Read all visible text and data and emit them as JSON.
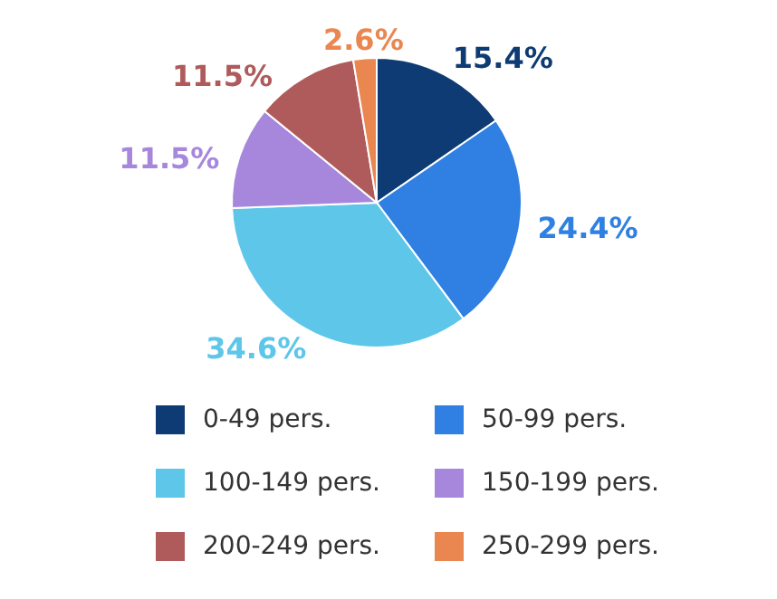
{
  "chart_data": {
    "type": "pie",
    "categories": [
      "0-49 pers.",
      "50-99 pers.",
      "100-149 pers.",
      "150-199 pers.",
      "200-249 pers.",
      "250-299 pers."
    ],
    "values": [
      15.4,
      24.4,
      34.6,
      11.5,
      11.5,
      2.6
    ],
    "colors": [
      "#0e3b73",
      "#2f80e2",
      "#5ec6e9",
      "#a687dc",
      "#b05b5b",
      "#ea8650"
    ],
    "value_labels": [
      "15.4%",
      "24.4%",
      "34.6%",
      "11.5%",
      "11.5%",
      "2.6%"
    ],
    "legend": "bottom"
  }
}
